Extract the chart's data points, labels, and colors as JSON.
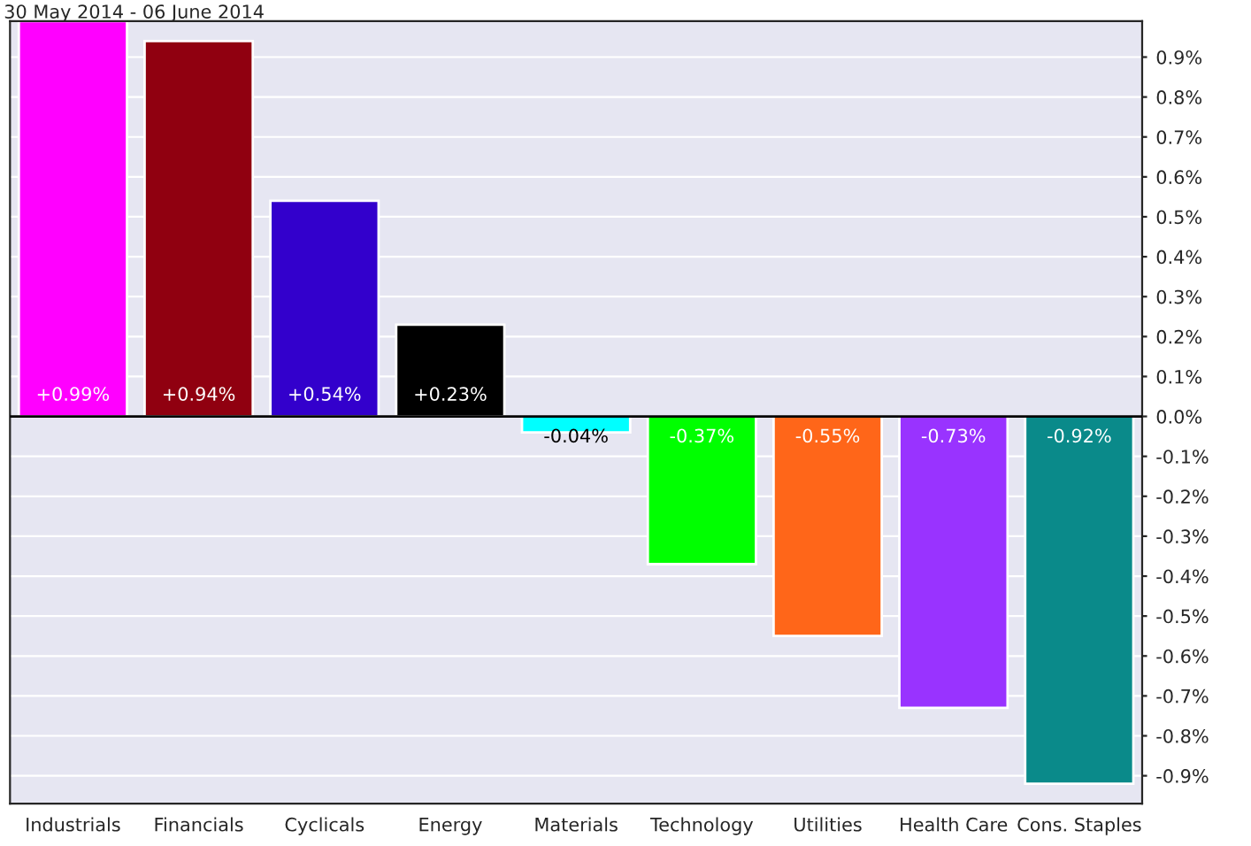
{
  "chart_data": {
    "type": "bar",
    "title": "30 May 2014 - 06 June 2014",
    "categories": [
      "Industrials",
      "Financials",
      "Cyclicals",
      "Energy",
      "Materials",
      "Technology",
      "Utilities",
      "Health Care",
      "Cons. Staples"
    ],
    "values": [
      0.99,
      0.94,
      0.54,
      0.23,
      -0.04,
      -0.37,
      -0.55,
      -0.73,
      -0.92
    ],
    "value_labels": [
      "+0.99%",
      "+0.94%",
      "+0.54%",
      "+0.23%",
      "-0.04%",
      "-0.37%",
      "-0.55%",
      "-0.73%",
      "-0.92%"
    ],
    "colors": [
      "#ff00ff",
      "#900010",
      "#3300cc",
      "#000000",
      "#00ffff",
      "#00ff00",
      "#ff6619",
      "#9933ff",
      "#0a8a8a"
    ],
    "ylim": [
      -0.97,
      0.99
    ],
    "yticks": [
      {
        "value": -0.9,
        "label": "-0.9%"
      },
      {
        "value": -0.8,
        "label": "-0.8%"
      },
      {
        "value": -0.7,
        "label": "-0.7%"
      },
      {
        "value": -0.6,
        "label": "-0.6%"
      },
      {
        "value": -0.5,
        "label": "-0.5%"
      },
      {
        "value": -0.4,
        "label": "-0.4%"
      },
      {
        "value": -0.3,
        "label": "-0.3%"
      },
      {
        "value": -0.2,
        "label": "-0.2%"
      },
      {
        "value": -0.1,
        "label": "-0.1%"
      },
      {
        "value": 0,
        "label": "0.0%"
      },
      {
        "value": 0.1,
        "label": "0.1%"
      },
      {
        "value": 0.2,
        "label": "0.2%"
      },
      {
        "value": 0.3,
        "label": "0.3%"
      },
      {
        "value": 0.4,
        "label": "0.4%"
      },
      {
        "value": 0.5,
        "label": "0.5%"
      },
      {
        "value": 0.6,
        "label": "0.6%"
      },
      {
        "value": 0.7,
        "label": "0.7%"
      },
      {
        "value": 0.8,
        "label": "0.8%"
      },
      {
        "value": 0.9,
        "label": "0.9%"
      }
    ],
    "grid": "y"
  }
}
